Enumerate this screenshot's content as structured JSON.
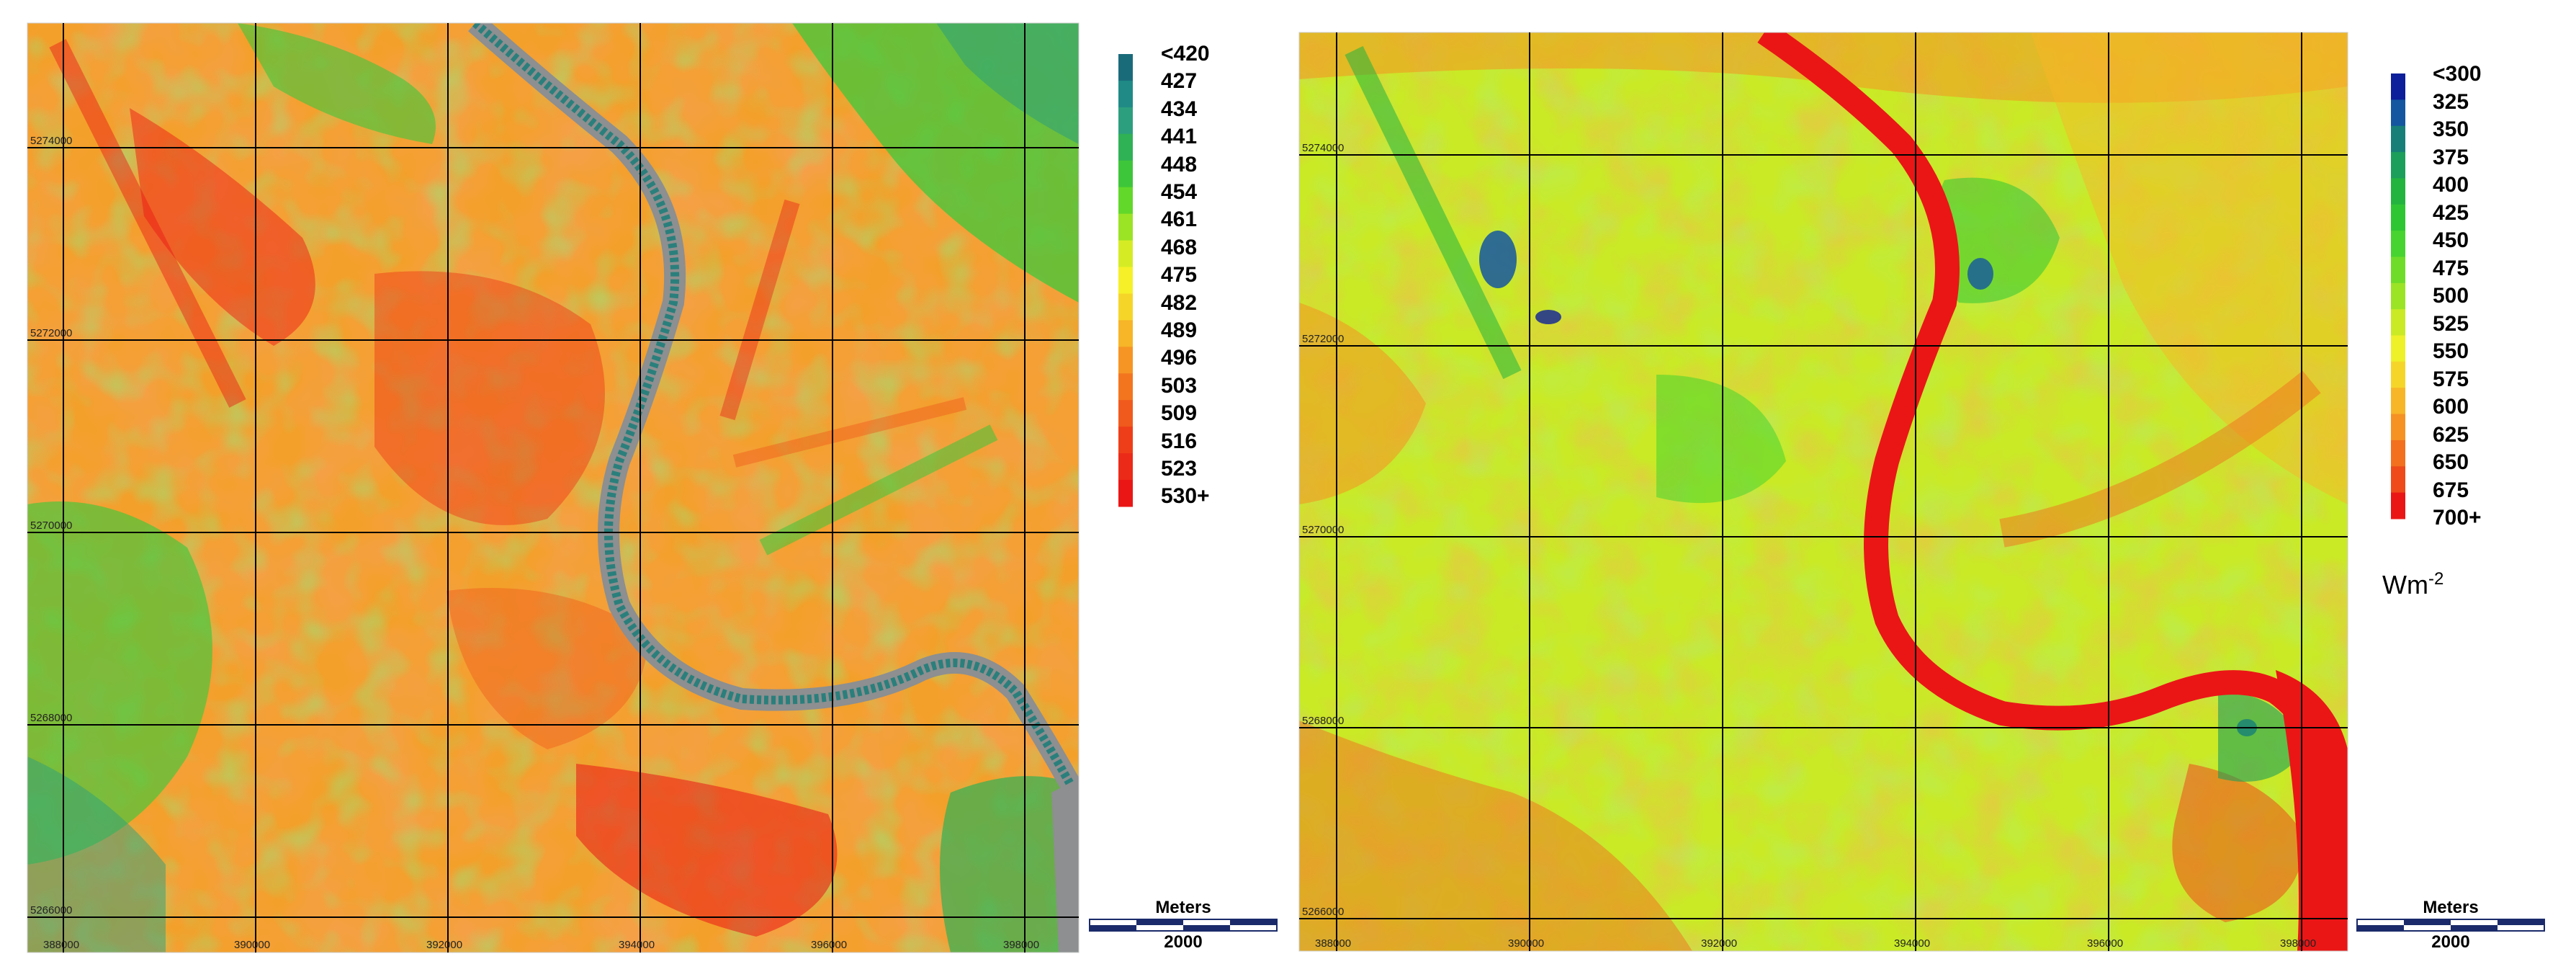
{
  "maps": [
    {
      "grid_x_labels": [
        "388000",
        "390000",
        "392000",
        "394000",
        "396000",
        "398000"
      ],
      "grid_y_labels": [
        "5274000",
        "5272000",
        "5270000",
        "5268000",
        "5266000"
      ],
      "legend": {
        "labels": [
          "<420",
          "427",
          "434",
          "441",
          "448",
          "454",
          "461",
          "468",
          "475",
          "482",
          "489",
          "496",
          "503",
          "509",
          "516",
          "523",
          "530+"
        ],
        "colors": [
          "#1a6b7a",
          "#1f8a86",
          "#2c9f7e",
          "#2fb156",
          "#3ec63a",
          "#62d82a",
          "#9be325",
          "#d5ec25",
          "#f5f028",
          "#f6d529",
          "#f7b528",
          "#f69524",
          "#f3761f",
          "#f05a1c",
          "#ee3e19",
          "#ec2a18",
          "#ea1616"
        ]
      },
      "units": "",
      "scalebar": {
        "title": "Meters",
        "value": "2000"
      }
    },
    {
      "grid_x_labels": [
        "388000",
        "390000",
        "392000",
        "394000",
        "396000",
        "398000"
      ],
      "grid_y_labels": [
        "5274000",
        "5272000",
        "5270000",
        "5268000",
        "5266000"
      ],
      "legend": {
        "labels": [
          "<300",
          "325",
          "350",
          "375",
          "400",
          "425",
          "450",
          "475",
          "500",
          "525",
          "550",
          "575",
          "600",
          "625",
          "650",
          "675",
          "700+"
        ],
        "colors": [
          "#0d1f9a",
          "#1456a0",
          "#177f78",
          "#1c9f5a",
          "#23b43f",
          "#2fc634",
          "#47d430",
          "#6fdc2a",
          "#9be325",
          "#c9ea25",
          "#eef028",
          "#f6d529",
          "#f7b528",
          "#f59223",
          "#f2701e",
          "#ee4a1a",
          "#ea1616"
        ]
      },
      "units": "Wm",
      "units_exp": "-2",
      "scalebar": {
        "title": "Meters",
        "value": "2000"
      }
    }
  ]
}
